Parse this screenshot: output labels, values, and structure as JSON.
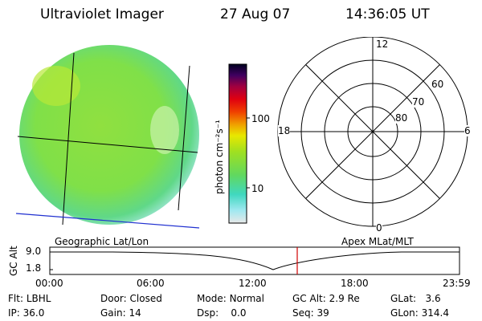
{
  "header": {
    "instrument": "Ultraviolet Imager",
    "date": "27 Aug 07",
    "time": "14:36:05 UT"
  },
  "image_panel": {
    "caption": "Geographic Lat/Lon"
  },
  "colorbar": {
    "unit_label": "photon cm⁻²s⁻¹",
    "ticks": [
      "100",
      "10"
    ],
    "scale": "log"
  },
  "polar_plot": {
    "caption": "Apex MLat/MLT",
    "mlt_labels": {
      "top": "12",
      "left": "18",
      "right": "6",
      "bottom": "0"
    },
    "lat_labels": [
      "60",
      "70",
      "80"
    ]
  },
  "altitude_plot": {
    "ylabel": "GC Alt",
    "yticks": [
      "9.0",
      "1.8"
    ],
    "xticks": [
      "00:00",
      "06:00",
      "12:00",
      "18:00",
      "23:59"
    ],
    "current_time_marker": "14:36:05"
  },
  "status": {
    "row1": [
      {
        "label": "Flt:",
        "value": "LBHL"
      },
      {
        "label": "Door:",
        "value": "Closed"
      },
      {
        "label": "Mode:",
        "value": "Normal"
      },
      {
        "label": "GC Alt:",
        "value": "2.9 Re"
      },
      {
        "label": "GLat:",
        "value": "3.6"
      }
    ],
    "row2": [
      {
        "label": "IP:",
        "value": "36.0"
      },
      {
        "label": "Gain:",
        "value": "14"
      },
      {
        "label": "Dsp:",
        "value": "0.0"
      },
      {
        "label": "Seq:",
        "value": "39"
      },
      {
        "label": "GLon:",
        "value": "314.4"
      }
    ]
  },
  "colors": {
    "disk_main": "#8fe040",
    "disk_edge": "#c8f0e8",
    "marker": "#d00000",
    "coast": "#2030d0"
  }
}
